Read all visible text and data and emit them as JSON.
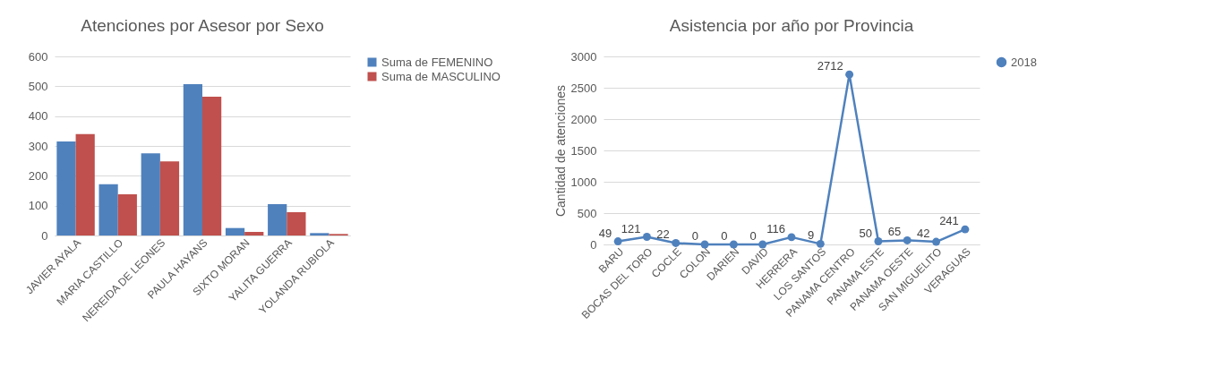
{
  "chart_data": [
    {
      "type": "bar",
      "title": "Atenciones por Asesor por Sexo",
      "categories": [
        "JAVIER AYALA",
        "MARIA CASTILLO",
        "NEREIDA DE LEONES",
        "PAULA HAYANS",
        "SIXTO MORAN",
        "YALITA GUERRA",
        "YOLANDA RUBIOLA"
      ],
      "series": [
        {
          "name": "Suma de FEMENINO",
          "color": "#4f81bd",
          "values": [
            315,
            172,
            275,
            507,
            25,
            105,
            8
          ]
        },
        {
          "name": "Suma de MASCULINO",
          "color": "#c0504d",
          "values": [
            340,
            138,
            248,
            465,
            12,
            78,
            5
          ]
        }
      ],
      "ylim": [
        0,
        600
      ],
      "yticks": [
        0,
        100,
        200,
        300,
        400,
        500,
        600
      ],
      "grid": "y",
      "legend": "right"
    },
    {
      "type": "line",
      "title": "Asistencia por año por Provincia",
      "ylabel": "Cantidad de atenciones",
      "categories": [
        "BARU",
        "BOCAS DEL TORO",
        "COCLE",
        "COLON",
        "DARIEN",
        "DAVID",
        "HERRERA",
        "LOS SANTOS",
        "PANAMA CENTRO",
        "PANAMA ESTE",
        "PANAMA OESTE",
        "SAN MIGUELITO",
        "VERAGUAS"
      ],
      "series": [
        {
          "name": "2018",
          "color": "#4f81bd",
          "values": [
            49,
            121,
            22,
            0,
            0,
            0,
            116,
            9,
            2712,
            50,
            65,
            42,
            241
          ]
        }
      ],
      "ylim": [
        0,
        3000
      ],
      "yticks": [
        0,
        500,
        1000,
        1500,
        2000,
        2500,
        3000
      ],
      "grid": "y",
      "legend": "right",
      "marker": "circle",
      "data_labels": true
    }
  ]
}
